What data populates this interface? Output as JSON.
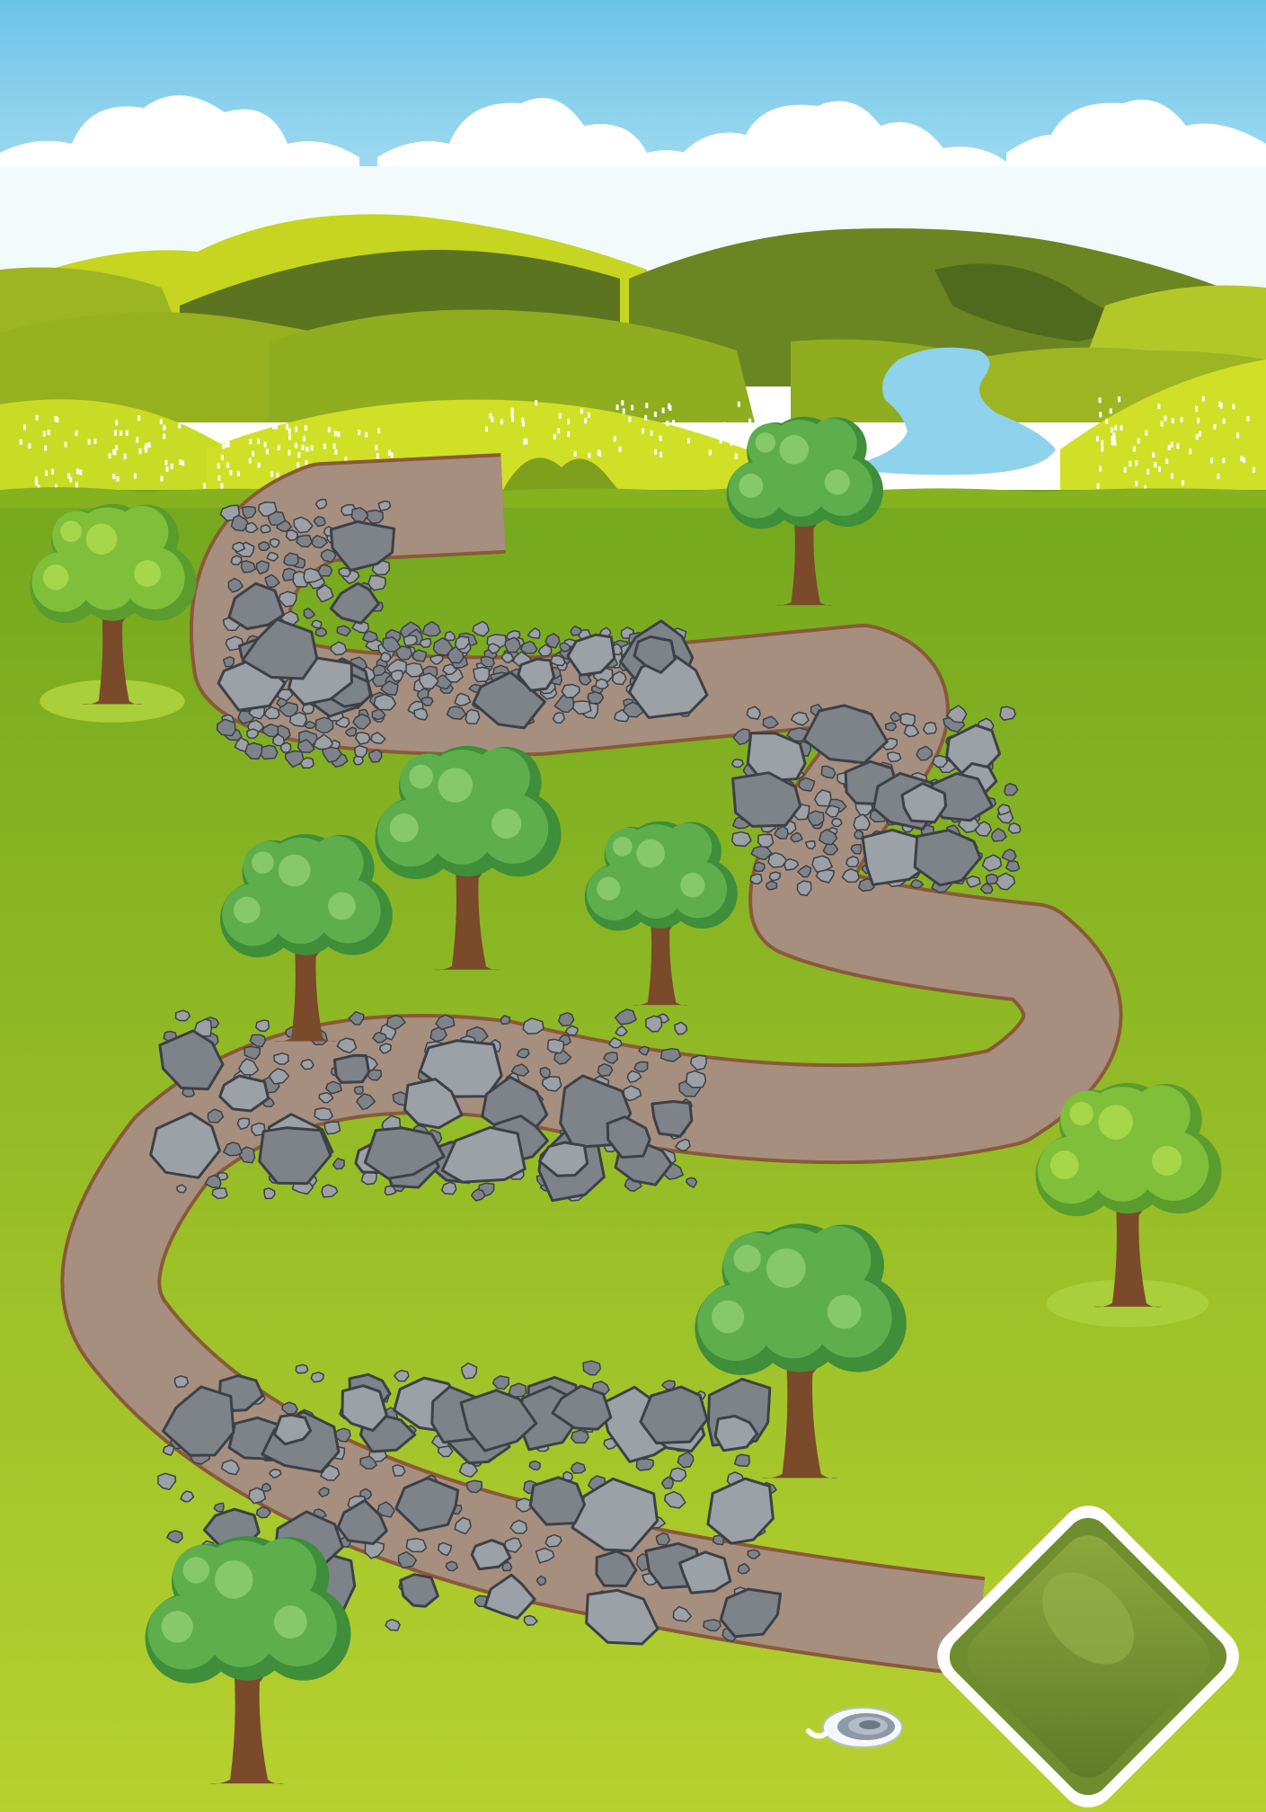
{
  "game": {
    "scene": "winding-stone-path",
    "colors": {
      "sky_top": "#6CC3E8",
      "sky_bottom": "#C6ECF6",
      "cloud": "#FFFFFF",
      "hill_light": "#C5D520",
      "hill_mid": "#8FAD1E",
      "hill_dark": "#5C7420",
      "lake": "#8ED2EC",
      "grass_top": "#74A81E",
      "grass_bottom": "#B7D12F",
      "path_fill": "#A78F80",
      "path_edge": "#8A5A38",
      "stone": "#7E838A",
      "stone_light": "#9CA1A8",
      "stone_outline": "#3D4046",
      "tree_leaf_dark": "#3E8E3A",
      "tree_leaf": "#5FAE4D",
      "tree_leaf_light": "#86C96A",
      "trunk": "#7A4A2A",
      "goal_tile": "#6F8C2E",
      "goal_border": "#FFFFFF"
    },
    "icons": {
      "goal": "diamond-goal-tile-icon",
      "marker": "spiral-snail-icon",
      "tree": "oak-tree-icon",
      "bush_tree": "flowering-tree-icon"
    }
  }
}
